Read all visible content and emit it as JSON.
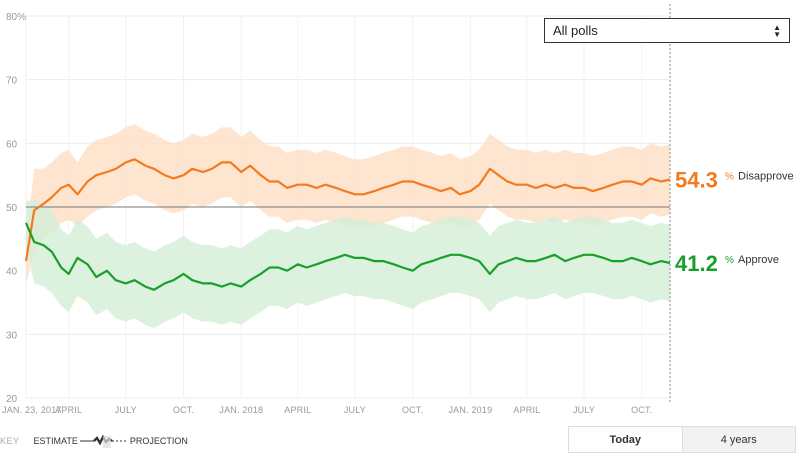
{
  "controls": {
    "poll_filter": {
      "selected": "All polls"
    },
    "range_toggle": {
      "options": [
        "Today",
        "4 years"
      ],
      "active": "Today"
    }
  },
  "key": {
    "label": "KEY",
    "estimate": "ESTIMATE",
    "projection": "PROJECTION"
  },
  "chart_data": {
    "type": "line",
    "title": "",
    "xlabel": "",
    "ylabel": "",
    "ylim": [
      20,
      80
    ],
    "y_ticks": [
      "20",
      "30",
      "40",
      "50",
      "60",
      "70",
      "80%"
    ],
    "reference_line": 50,
    "x_axis_labels": [
      "JAN. 23, 2017",
      "APRIL",
      "JULY",
      "OCT.",
      "JAN. 2018",
      "APRIL",
      "JULY",
      "OCT.",
      "JAN. 2019",
      "APRIL",
      "JULY",
      "OCT."
    ],
    "x": [
      "2017-01-23",
      "2017-02-05",
      "2017-02-20",
      "2017-03-05",
      "2017-03-20",
      "2017-04-01",
      "2017-04-15",
      "2017-05-01",
      "2017-05-15",
      "2017-06-01",
      "2017-06-15",
      "2017-07-01",
      "2017-07-15",
      "2017-08-01",
      "2017-08-15",
      "2017-09-01",
      "2017-09-15",
      "2017-10-01",
      "2017-10-15",
      "2017-11-01",
      "2017-11-15",
      "2017-12-01",
      "2017-12-15",
      "2018-01-01",
      "2018-01-15",
      "2018-02-01",
      "2018-02-15",
      "2018-03-01",
      "2018-03-15",
      "2018-04-01",
      "2018-04-15",
      "2018-05-01",
      "2018-05-15",
      "2018-06-01",
      "2018-06-15",
      "2018-07-01",
      "2018-07-15",
      "2018-08-01",
      "2018-08-15",
      "2018-09-01",
      "2018-09-15",
      "2018-10-01",
      "2018-10-15",
      "2018-11-01",
      "2018-11-15",
      "2018-12-01",
      "2018-12-15",
      "2019-01-01",
      "2019-01-15",
      "2019-02-01",
      "2019-02-15",
      "2019-03-01",
      "2019-03-15",
      "2019-04-01",
      "2019-04-15",
      "2019-05-01",
      "2019-05-15",
      "2019-06-01",
      "2019-06-15",
      "2019-07-01",
      "2019-07-15",
      "2019-08-01",
      "2019-08-15",
      "2019-09-01",
      "2019-09-15",
      "2019-10-01",
      "2019-10-15",
      "2019-11-01",
      "2019-11-15"
    ],
    "series": [
      {
        "name": "Disapprove",
        "color": "#f47a1f",
        "band_color": "#fde0c8",
        "end_value": "54.3",
        "values": [
          41.5,
          49.5,
          50.5,
          51.5,
          53.0,
          53.5,
          52.0,
          54.0,
          55.0,
          55.5,
          56.0,
          57.0,
          57.5,
          56.5,
          56.0,
          55.0,
          54.5,
          55.0,
          56.0,
          55.5,
          56.0,
          57.0,
          57.0,
          55.5,
          56.5,
          55.0,
          54.0,
          54.0,
          53.0,
          53.5,
          53.5,
          53.0,
          53.5,
          53.0,
          52.5,
          52.0,
          52.0,
          52.5,
          53.0,
          53.5,
          54.0,
          54.0,
          53.5,
          53.0,
          52.5,
          53.0,
          52.0,
          52.5,
          53.5,
          56.0,
          55.0,
          54.0,
          53.5,
          53.5,
          53.0,
          53.5,
          53.0,
          53.5,
          53.0,
          53.0,
          52.5,
          53.0,
          53.5,
          54.0,
          54.0,
          53.5,
          54.5,
          54.0,
          54.3
        ],
        "band_low": [
          38,
          43,
          45,
          46,
          47.5,
          48,
          47,
          48.5,
          49.5,
          50,
          50.5,
          51.5,
          52,
          51,
          50.5,
          49.5,
          49,
          49.5,
          50.5,
          50,
          50.5,
          51.5,
          51.5,
          50,
          51,
          49.5,
          48.5,
          48.5,
          47.5,
          48,
          48,
          47.5,
          48,
          47.5,
          47,
          46.5,
          46.5,
          47,
          47.5,
          48,
          48.5,
          48.5,
          48,
          47.5,
          47,
          47.5,
          46.5,
          47,
          48,
          50.5,
          49.5,
          48.5,
          48,
          48,
          47.5,
          48,
          47.5,
          48,
          47.5,
          47.5,
          47,
          47.5,
          48,
          48.5,
          48.5,
          48,
          49,
          48.5,
          48.8
        ],
        "band_high": [
          45,
          56,
          56,
          57,
          58.5,
          59,
          57,
          59.5,
          60.5,
          61,
          61.5,
          62.5,
          63,
          62,
          61.5,
          60.5,
          60,
          60.5,
          61.5,
          61,
          61.5,
          62.5,
          62.5,
          61,
          62,
          60.5,
          59.5,
          59.5,
          58.5,
          59,
          59,
          58.5,
          59,
          58.5,
          58,
          57.5,
          57.5,
          58,
          58.5,
          59,
          59.5,
          59.5,
          59,
          58.5,
          58,
          58.5,
          57.5,
          58,
          59,
          61.5,
          60.5,
          59.5,
          59,
          59,
          58.5,
          59,
          58.5,
          59,
          58.5,
          58.5,
          58,
          58.5,
          59,
          59.5,
          59.5,
          59,
          60,
          59.5,
          59.8
        ]
      },
      {
        "name": "Approve",
        "color": "#18a02a",
        "band_color": "#d6efd8",
        "end_value": "41.2",
        "values": [
          47.5,
          44.5,
          44.0,
          43.0,
          40.5,
          39.5,
          42.0,
          41.0,
          39.0,
          40.0,
          38.5,
          38.0,
          38.5,
          37.5,
          37.0,
          38.0,
          38.5,
          39.5,
          38.5,
          38.0,
          38.0,
          37.5,
          38.0,
          37.5,
          38.5,
          39.5,
          40.5,
          40.5,
          40.0,
          41.0,
          40.5,
          41.0,
          41.5,
          42.0,
          42.5,
          42.0,
          42.0,
          41.5,
          41.5,
          41.0,
          40.5,
          40.0,
          41.0,
          41.5,
          42.0,
          42.5,
          42.5,
          42.0,
          41.5,
          39.5,
          41.0,
          41.5,
          42.0,
          41.5,
          41.5,
          42.0,
          42.5,
          41.5,
          42.0,
          42.5,
          42.5,
          42.0,
          41.5,
          41.5,
          42.0,
          41.5,
          41.0,
          41.5,
          41.2
        ],
        "band_low": [
          44,
          38,
          37.5,
          36.5,
          34.5,
          33.5,
          36,
          35,
          33,
          34,
          32.5,
          32,
          32.5,
          31.5,
          31,
          32,
          32.5,
          33.5,
          32.5,
          32,
          32,
          31.5,
          32,
          31.5,
          32.5,
          33.5,
          34.5,
          34.5,
          34,
          35,
          34.5,
          35,
          35.5,
          36,
          36.5,
          36,
          36,
          35.5,
          35.5,
          35,
          34.5,
          34,
          35,
          35.5,
          36,
          36.5,
          36.5,
          36,
          35.5,
          33.5,
          35,
          35.5,
          36,
          35.5,
          35.5,
          36,
          36.5,
          35.5,
          36,
          36.5,
          36.5,
          36,
          35.5,
          35.5,
          36,
          35.5,
          35,
          35.5,
          35.2
        ],
        "band_high": [
          51,
          51,
          50.5,
          49.5,
          46.5,
          45.5,
          48,
          47,
          45,
          46,
          44.5,
          44,
          44.5,
          43.5,
          43,
          44,
          44.5,
          45.5,
          44.5,
          44,
          44,
          43.5,
          44,
          43.5,
          44.5,
          45.5,
          46.5,
          46.5,
          46,
          47,
          46.5,
          47,
          47.5,
          48,
          48.5,
          48,
          48,
          47.5,
          47.5,
          47,
          46.5,
          46,
          47,
          47.5,
          48,
          48.5,
          48.5,
          48,
          47.5,
          45.5,
          47,
          47.5,
          48,
          47.5,
          47.5,
          48,
          48.5,
          47.5,
          48,
          48.5,
          48.5,
          48,
          47.5,
          47.5,
          48,
          47.5,
          47,
          47.5,
          47.2
        ]
      }
    ]
  }
}
